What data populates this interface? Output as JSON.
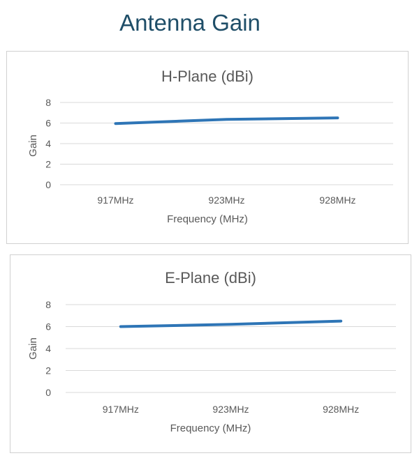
{
  "page": {
    "title": "Antenna Gain"
  },
  "chart_data": [
    {
      "type": "line",
      "title": "H-Plane (dBi)",
      "xlabel": "Frequency (MHz)",
      "ylabel": "Gain",
      "categories": [
        "917MHz",
        "923MHz",
        "928MHz"
      ],
      "yticks": [
        "0",
        "2",
        "4",
        "6",
        "8"
      ],
      "ylim": [
        0,
        8
      ],
      "grid": true,
      "series": [
        {
          "values": [
            5.95,
            6.35,
            6.5
          ],
          "color": "#2e75b6"
        }
      ]
    },
    {
      "type": "line",
      "title": "E-Plane (dBi)",
      "xlabel": "Frequency (MHz)",
      "ylabel": "Gain",
      "categories": [
        "917MHz",
        "923MHz",
        "928MHz"
      ],
      "yticks": [
        "0",
        "2",
        "4",
        "6",
        "8"
      ],
      "ylim": [
        0,
        8
      ],
      "grid": true,
      "series": [
        {
          "values": [
            6.0,
            6.2,
            6.5
          ],
          "color": "#2e75b6"
        }
      ]
    }
  ]
}
